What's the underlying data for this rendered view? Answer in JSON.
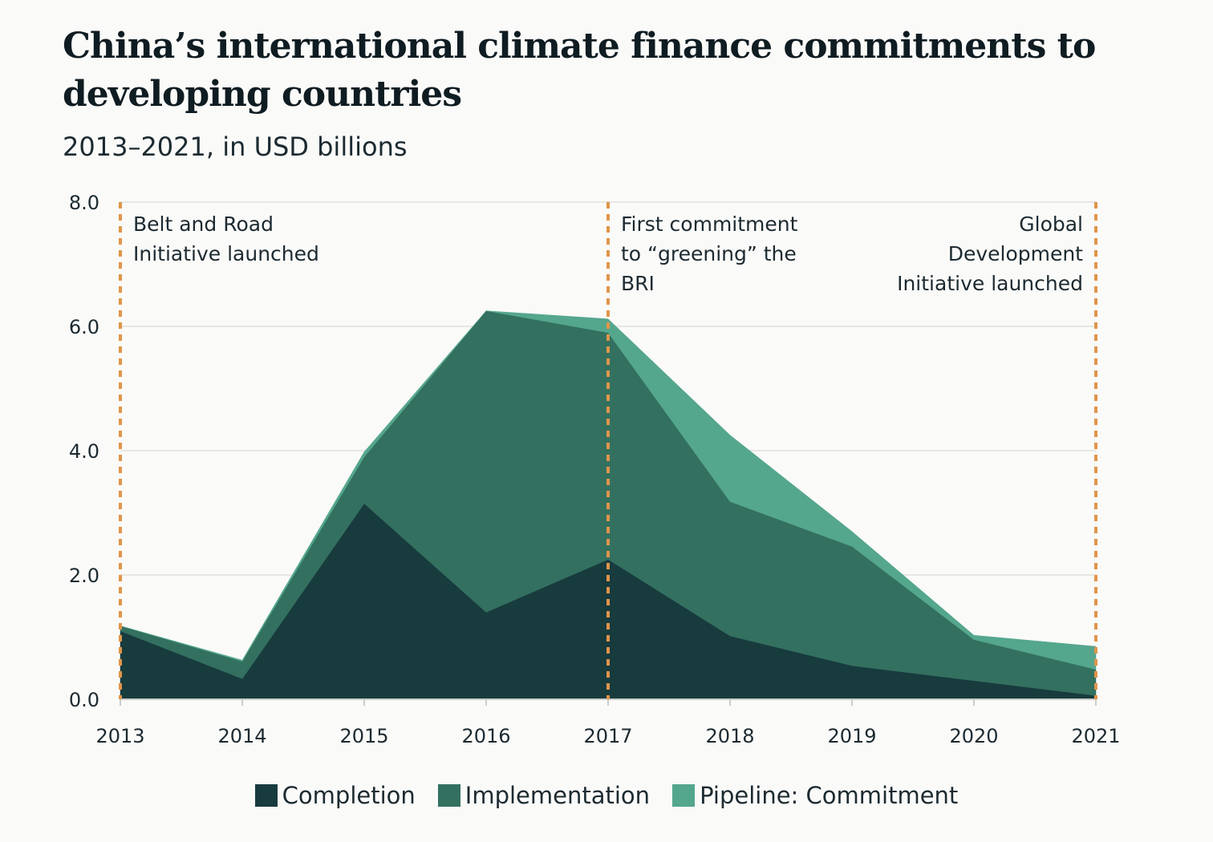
{
  "title": "China’s international climate finance commitments to developing countries",
  "subtitle": "2013–2021, in USD billions",
  "chart_data": {
    "type": "area",
    "stacked": true,
    "x": [
      "2013",
      "2014",
      "2015",
      "2016",
      "2017",
      "2018",
      "2019",
      "2020",
      "2021"
    ],
    "series": [
      {
        "name": "Completion",
        "color": "#183b3e",
        "values": [
          1.1,
          0.33,
          3.15,
          1.4,
          2.25,
          1.02,
          0.54,
          0.3,
          0.06
        ]
      },
      {
        "name": "Implementation",
        "color": "#33705f",
        "values": [
          0.08,
          0.28,
          0.75,
          4.85,
          3.65,
          2.16,
          1.92,
          0.66,
          0.42
        ]
      },
      {
        "name": "Pipeline: Commitment",
        "color": "#54a68d",
        "values": [
          0.0,
          0.02,
          0.08,
          0.0,
          0.22,
          1.07,
          0.24,
          0.07,
          0.37
        ]
      }
    ],
    "ylim": [
      0,
      8
    ],
    "yticks": [
      "0.0",
      "2.0",
      "4.0",
      "6.0",
      "8.0"
    ],
    "xlabel": "",
    "ylabel": "",
    "grid": true,
    "legend_position": "bottom",
    "annotations": [
      {
        "x": "2013",
        "lines": [
          "Belt and Road",
          "Initiative launched"
        ],
        "align": "left"
      },
      {
        "x": "2017",
        "lines": [
          "First commitment",
          "to “greening” the",
          "BRI"
        ],
        "align": "left"
      },
      {
        "x": "2021",
        "lines": [
          "Global",
          "Development",
          "Initiative launched"
        ],
        "align": "right"
      }
    ],
    "annotation_line_color": "#e0954a"
  }
}
